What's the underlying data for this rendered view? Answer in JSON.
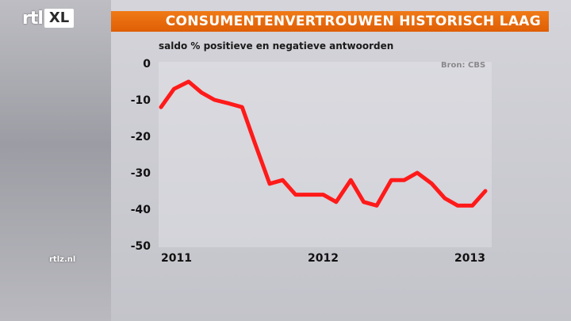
{
  "channel": {
    "logo_left": "rtl",
    "logo_right": "XL",
    "footer": "rtlz.nl"
  },
  "header": {
    "title": "CONSUMENTENVERTROUWEN HISTORISCH LAAG"
  },
  "colors": {
    "accent": "#e56a0c",
    "line": "#ff1a1a"
  },
  "chart_data": {
    "type": "line",
    "title": "CONSUMENTENVERTROUWEN HISTORISCH LAAG",
    "subtitle": "saldo % positieve en negatieve antwoorden",
    "source": "Bron: CBS",
    "ylim": [
      -50,
      0
    ],
    "y_ticks": [
      0,
      -10,
      -20,
      -30,
      -40,
      -50
    ],
    "x_range": [
      2011.0,
      2013.0
    ],
    "x_ticks": [
      {
        "value": 2011,
        "label": "2011"
      },
      {
        "value": 2012,
        "label": "2012"
      },
      {
        "value": 2013,
        "label": "2013"
      }
    ],
    "grid": false,
    "series": [
      {
        "x": [
          2011.0,
          2011.08,
          2011.17,
          2011.25,
          2011.33,
          2011.42,
          2011.5,
          2011.58,
          2011.67,
          2011.75,
          2011.83,
          2011.92,
          2012.0,
          2012.08,
          2012.17,
          2012.25,
          2012.33,
          2012.42,
          2012.5,
          2012.58,
          2012.67,
          2012.75,
          2012.83,
          2012.92,
          2013.0
        ],
        "values": [
          -12,
          -7,
          -5,
          -8,
          -10,
          -11,
          -12,
          -22,
          -33,
          -32,
          -36,
          -36,
          -36,
          -38,
          -32,
          -38,
          -39,
          -32,
          -32,
          -30,
          -33,
          -37,
          -39,
          -39,
          -35
        ]
      }
    ]
  }
}
